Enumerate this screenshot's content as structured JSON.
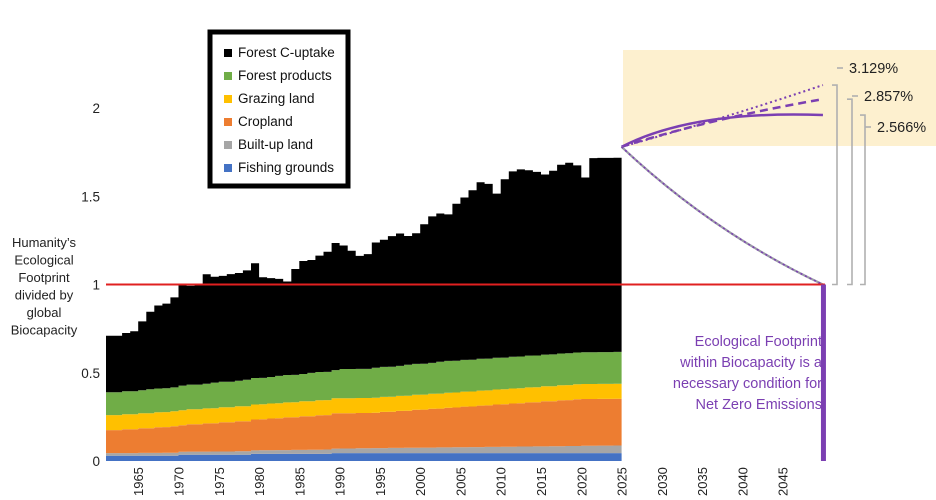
{
  "chart_data": {
    "type": "area",
    "title": "",
    "ylabel": "Humanity’s Ecological Footprint divided by global Biocapacity",
    "ylabel_lines": [
      "Humanity’s",
      "Ecological",
      "Footprint",
      "divided by",
      "global",
      "Biocapacity"
    ],
    "xlabel": "",
    "xlim": [
      1961,
      2051
    ],
    "ylim": [
      0,
      2.0
    ],
    "yticks": [
      0,
      0.5,
      1,
      1.5,
      2
    ],
    "ytick_labels": [
      "0",
      "0.5",
      "1",
      "1.5",
      "2"
    ],
    "xticks": [
      1965,
      1970,
      1975,
      1980,
      1985,
      1990,
      1995,
      2000,
      2005,
      2010,
      2015,
      2020,
      2025,
      2030,
      2035,
      2040,
      2045
    ],
    "xtick_labels": [
      "1965",
      "1970",
      "1975",
      "1980",
      "1985",
      "1990",
      "1995",
      "2000",
      "2005",
      "2010",
      "2015",
      "2020",
      "2025",
      "2030",
      "2035",
      "2040",
      "2045"
    ],
    "grid": false,
    "legend_position": "top-left",
    "stacked": true,
    "years": [
      1961,
      1962,
      1963,
      1964,
      1965,
      1966,
      1967,
      1968,
      1969,
      1970,
      1971,
      1972,
      1973,
      1974,
      1975,
      1976,
      1977,
      1978,
      1979,
      1980,
      1981,
      1982,
      1983,
      1984,
      1985,
      1986,
      1987,
      1988,
      1989,
      1990,
      1991,
      1992,
      1993,
      1994,
      1995,
      1996,
      1997,
      1998,
      1999,
      2000,
      2001,
      2002,
      2003,
      2004,
      2005,
      2006,
      2007,
      2008,
      2009,
      2010,
      2011,
      2012,
      2013,
      2014,
      2015,
      2016,
      2017,
      2018,
      2019,
      2020,
      2021,
      2022,
      2023,
      2024
    ],
    "series": [
      {
        "name": "Fishing grounds",
        "color": "#4472c4",
        "values": [
          0.03,
          0.03,
          0.03,
          0.03,
          0.03,
          0.03,
          0.03,
          0.03,
          0.03,
          0.035,
          0.035,
          0.035,
          0.035,
          0.035,
          0.035,
          0.035,
          0.035,
          0.035,
          0.04,
          0.04,
          0.04,
          0.04,
          0.04,
          0.04,
          0.04,
          0.04,
          0.04,
          0.04,
          0.045,
          0.045,
          0.045,
          0.045,
          0.045,
          0.045,
          0.045,
          0.045,
          0.045,
          0.045,
          0.045,
          0.045,
          0.045,
          0.045,
          0.045,
          0.045,
          0.045,
          0.045,
          0.045,
          0.045,
          0.045,
          0.045,
          0.045,
          0.045,
          0.045,
          0.045,
          0.045,
          0.045,
          0.045,
          0.045,
          0.045,
          0.045,
          0.045,
          0.045,
          0.045,
          0.045
        ]
      },
      {
        "name": "Built-up land",
        "color": "#a6a6a6",
        "values": [
          0.015,
          0.015,
          0.015,
          0.015,
          0.016,
          0.016,
          0.016,
          0.017,
          0.017,
          0.017,
          0.018,
          0.018,
          0.018,
          0.019,
          0.019,
          0.019,
          0.02,
          0.02,
          0.02,
          0.021,
          0.021,
          0.022,
          0.022,
          0.023,
          0.023,
          0.024,
          0.024,
          0.025,
          0.025,
          0.026,
          0.026,
          0.027,
          0.027,
          0.028,
          0.028,
          0.029,
          0.029,
          0.03,
          0.03,
          0.031,
          0.031,
          0.032,
          0.032,
          0.033,
          0.033,
          0.034,
          0.034,
          0.035,
          0.035,
          0.036,
          0.036,
          0.037,
          0.037,
          0.038,
          0.038,
          0.039,
          0.039,
          0.04,
          0.04,
          0.041,
          0.041,
          0.042,
          0.042,
          0.043
        ]
      },
      {
        "name": "Cropland",
        "color": "#ed7d31",
        "values": [
          0.13,
          0.13,
          0.135,
          0.135,
          0.14,
          0.14,
          0.145,
          0.145,
          0.15,
          0.15,
          0.155,
          0.155,
          0.16,
          0.16,
          0.165,
          0.165,
          0.17,
          0.17,
          0.175,
          0.175,
          0.18,
          0.18,
          0.185,
          0.185,
          0.19,
          0.19,
          0.195,
          0.195,
          0.2,
          0.2,
          0.2,
          0.2,
          0.2,
          0.2,
          0.205,
          0.205,
          0.21,
          0.21,
          0.215,
          0.215,
          0.22,
          0.22,
          0.225,
          0.225,
          0.23,
          0.23,
          0.235,
          0.235,
          0.24,
          0.24,
          0.245,
          0.245,
          0.25,
          0.25,
          0.255,
          0.255,
          0.26,
          0.26,
          0.265,
          0.265,
          0.265,
          0.265,
          0.265,
          0.265
        ]
      },
      {
        "name": "Grazing land",
        "color": "#ffc000",
        "values": [
          0.085,
          0.085,
          0.085,
          0.085,
          0.085,
          0.085,
          0.085,
          0.085,
          0.085,
          0.085,
          0.085,
          0.085,
          0.085,
          0.085,
          0.085,
          0.085,
          0.085,
          0.085,
          0.085,
          0.085,
          0.085,
          0.085,
          0.085,
          0.085,
          0.085,
          0.085,
          0.085,
          0.085,
          0.085,
          0.085,
          0.085,
          0.085,
          0.085,
          0.085,
          0.085,
          0.085,
          0.085,
          0.085,
          0.085,
          0.085,
          0.085,
          0.085,
          0.085,
          0.085,
          0.085,
          0.085,
          0.085,
          0.085,
          0.085,
          0.085,
          0.085,
          0.085,
          0.085,
          0.085,
          0.085,
          0.085,
          0.085,
          0.085,
          0.085,
          0.085,
          0.085,
          0.085,
          0.085,
          0.085
        ]
      },
      {
        "name": "Forest products",
        "color": "#70ad47",
        "values": [
          0.13,
          0.13,
          0.13,
          0.13,
          0.13,
          0.135,
          0.135,
          0.135,
          0.135,
          0.14,
          0.14,
          0.14,
          0.14,
          0.145,
          0.145,
          0.145,
          0.145,
          0.15,
          0.15,
          0.15,
          0.15,
          0.155,
          0.155,
          0.155,
          0.155,
          0.16,
          0.16,
          0.16,
          0.16,
          0.165,
          0.165,
          0.165,
          0.165,
          0.17,
          0.17,
          0.17,
          0.17,
          0.175,
          0.175,
          0.175,
          0.175,
          0.18,
          0.18,
          0.18,
          0.18,
          0.18,
          0.18,
          0.18,
          0.18,
          0.18,
          0.18,
          0.18,
          0.18,
          0.18,
          0.18,
          0.18,
          0.18,
          0.18,
          0.18,
          0.18,
          0.18,
          0.18,
          0.18,
          0.18
        ]
      },
      {
        "name": "Forest C-uptake",
        "color": "#000000",
        "values": [
          0.32,
          0.32,
          0.33,
          0.34,
          0.39,
          0.44,
          0.47,
          0.48,
          0.51,
          0.57,
          0.56,
          0.57,
          0.62,
          0.6,
          0.6,
          0.61,
          0.61,
          0.62,
          0.65,
          0.57,
          0.56,
          0.55,
          0.53,
          0.6,
          0.64,
          0.64,
          0.66,
          0.68,
          0.72,
          0.7,
          0.67,
          0.64,
          0.65,
          0.71,
          0.72,
          0.74,
          0.75,
          0.73,
          0.74,
          0.79,
          0.83,
          0.84,
          0.83,
          0.89,
          0.92,
          0.96,
          1.0,
          0.99,
          0.93,
          1.01,
          1.05,
          1.06,
          1.05,
          1.04,
          1.02,
          1.04,
          1.07,
          1.08,
          1.06,
          0.99,
          1.1,
          1.1,
          1.1,
          1.1
        ]
      }
    ],
    "projections": {
      "start": {
        "x": 2025,
        "y": 1.78
      },
      "end_x": 2050,
      "scenarios": [
        {
          "name": "3.129%",
          "style": "dotted",
          "end_y": 2.13
        },
        {
          "name": "2.857%",
          "style": "dashed",
          "end_y": 2.05
        },
        {
          "name": "2.566%",
          "style": "solid",
          "end_y": 1.96
        },
        {
          "name": "decline",
          "style": "solid",
          "end_y": 1.0
        }
      ],
      "colors": {
        "projection": "#7b3fb2",
        "highlight": "#fdf0cf",
        "bracket": "#b0b0b0",
        "gray_line": "#9a9aa6"
      }
    },
    "reference_line": {
      "y": 1,
      "color": "#e02020",
      "x_start": 1961,
      "x_end": 2050
    },
    "target_bar": {
      "x": 2050,
      "y_from": 0,
      "y_to": 1,
      "color": "#7b3fb2"
    },
    "annotation": {
      "text": "Ecological Footprint within Biocapacity is a necessary condition for Net Zero Emissions",
      "lines": [
        "Ecological Footprint",
        "within Biocapacity is a",
        "necessary condition for",
        "Net Zero Emissions"
      ],
      "color": "#7b3fb2"
    }
  }
}
